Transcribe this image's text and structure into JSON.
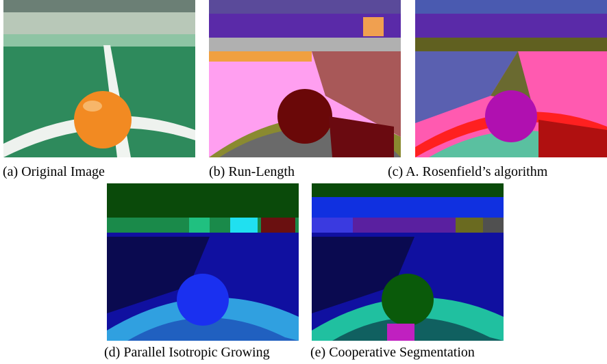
{
  "figures": [
    {
      "caption": "(a) Original Image"
    },
    {
      "caption": "(b) Run-Length"
    },
    {
      "caption": "(c) A. Rosenfield’s algorithm"
    },
    {
      "caption": "(d) Parallel Isotropic Growing"
    },
    {
      "caption": "(e) Cooperative Segmentation"
    }
  ]
}
